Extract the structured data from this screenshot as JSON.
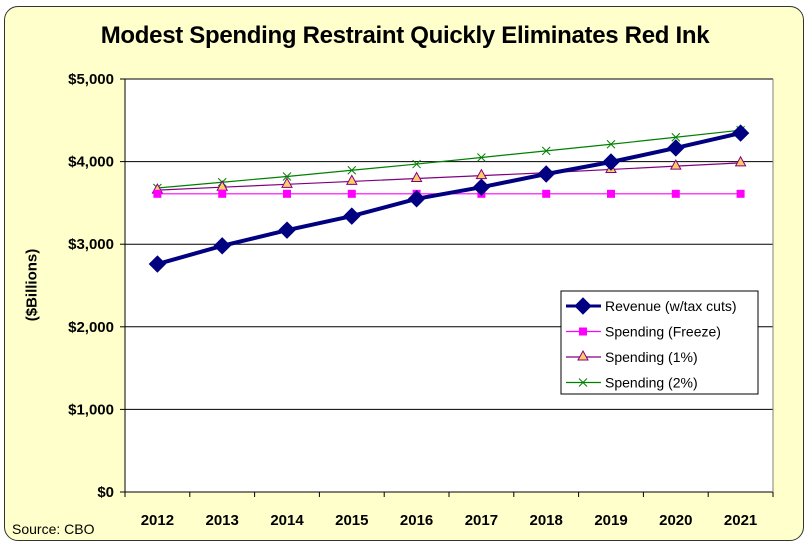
{
  "chart_data": {
    "type": "line",
    "title": "Modest Spending Restraint Quickly Eliminates Red Ink",
    "xlabel": "",
    "ylabel": "($Billions)",
    "source": "Source: CBO",
    "x": [
      "2012",
      "2013",
      "2014",
      "2015",
      "2016",
      "2017",
      "2018",
      "2019",
      "2020",
      "2021"
    ],
    "ylim": [
      0,
      5000
    ],
    "yticks": [
      0,
      1000,
      2000,
      3000,
      4000,
      5000
    ],
    "ytick_labels": [
      "$0",
      "$1,000",
      "$2,000",
      "$3,000",
      "$4,000",
      "$5,000"
    ],
    "grid": "horizontal",
    "legend_position": "right-middle",
    "series": [
      {
        "name": "Revenue (w/tax cuts)",
        "color": "#000080",
        "marker": "diamond",
        "values": [
          2760,
          2980,
          3170,
          3340,
          3550,
          3690,
          3850,
          3995,
          4165,
          4345
        ]
      },
      {
        "name": "Spending (Freeze)",
        "color": "#ff00ff",
        "marker": "square",
        "values": [
          3610,
          3610,
          3610,
          3610,
          3610,
          3610,
          3610,
          3610,
          3610,
          3610
        ]
      },
      {
        "name": "Spending (1%)",
        "color": "#800080",
        "marker": "triangle",
        "values": [
          3655,
          3690,
          3725,
          3760,
          3795,
          3830,
          3865,
          3905,
          3945,
          3985
        ]
      },
      {
        "name": "Spending (2%)",
        "color": "#008000",
        "marker": "x",
        "values": [
          3680,
          3750,
          3820,
          3895,
          3970,
          4050,
          4130,
          4210,
          4295,
          4380
        ]
      }
    ]
  }
}
